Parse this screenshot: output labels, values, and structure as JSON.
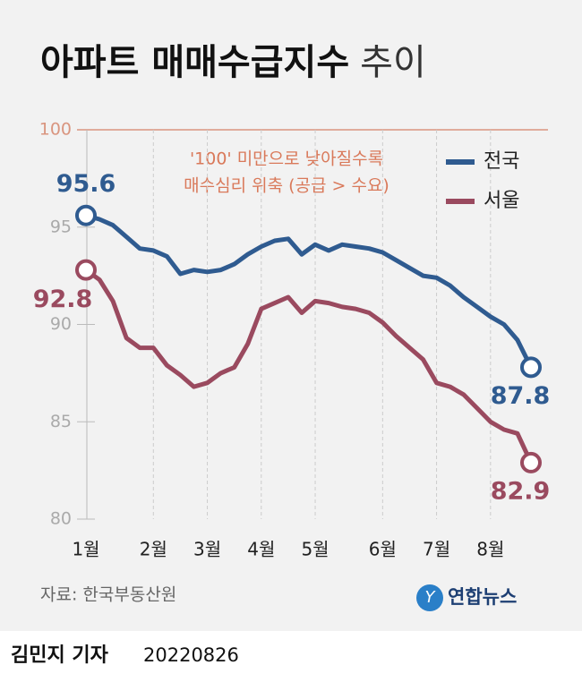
{
  "chart_data": {
    "type": "line",
    "title": "아파트 매매수급지수",
    "title_light": "추이",
    "annotations": [
      "'100' 미만으로 낮아질수록",
      "매수심리 위축 (공급 > 수요)"
    ],
    "categories": [
      "1월",
      null,
      null,
      null,
      null,
      "2월",
      null,
      null,
      null,
      "3월",
      null,
      null,
      null,
      "4월",
      null,
      null,
      null,
      "5월",
      null,
      null,
      null,
      null,
      "6월",
      null,
      null,
      null,
      "7월",
      null,
      null,
      null,
      "8월",
      null,
      null,
      null
    ],
    "series": [
      {
        "name": "전국",
        "color": "#2f5b90",
        "values": [
          95.6,
          95.4,
          95.1,
          94.5,
          93.9,
          93.8,
          93.5,
          92.6,
          92.8,
          92.7,
          92.8,
          93.1,
          93.6,
          94.0,
          94.3,
          94.4,
          93.6,
          94.1,
          93.8,
          94.1,
          94.0,
          93.9,
          93.7,
          93.3,
          92.9,
          92.5,
          92.4,
          92.0,
          91.4,
          90.9,
          90.4,
          90.0,
          89.2,
          87.8
        ]
      },
      {
        "name": "서울",
        "color": "#9a4a5f",
        "values": [
          92.8,
          92.3,
          91.2,
          89.3,
          88.8,
          88.8,
          87.9,
          87.4,
          86.8,
          87.0,
          87.5,
          87.8,
          89.0,
          90.8,
          91.1,
          91.4,
          90.6,
          91.2,
          91.1,
          90.9,
          90.8,
          90.6,
          90.1,
          89.4,
          88.8,
          88.2,
          87.0,
          86.8,
          86.4,
          85.7,
          85.0,
          84.6,
          84.4,
          82.9
        ]
      }
    ],
    "ylim": [
      80,
      100
    ],
    "yticks": [
      80,
      85,
      90,
      95,
      100
    ],
    "grid": true,
    "legend": "top-right",
    "source": "자료: 한국부동산원"
  },
  "logo": "연합뉴스",
  "byline": "김민지 기자",
  "date": "20220826"
}
